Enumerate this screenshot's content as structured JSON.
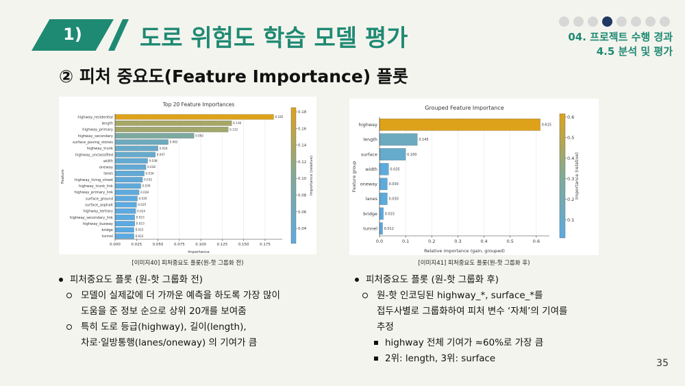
{
  "header": {
    "number": "1)",
    "title": "도로 위험도 학습 모델 평가",
    "section_line1": "04. 프로젝트 수행 경과",
    "section_line2": "4.5 분석 및 평가",
    "progress_dots": 8,
    "active_dot": 3
  },
  "subtitle": "② 피처 중요도(Feature Importance) 플롯",
  "colors": {
    "accent": "#1f8a73",
    "dot_active": "#213863",
    "dot_inactive": "#d7d7d7"
  },
  "chart_data": [
    {
      "type": "bar",
      "orientation": "horizontal",
      "title": "Top 20 Feature Importances",
      "xlabel": "Importance",
      "ylabel": "Feature",
      "colorbar_label": "Importance (relative)",
      "colorbar_ticks": [
        "0.04",
        "0.06",
        "0.08",
        "0.10",
        "0.12",
        "0.14",
        "0.16",
        "0.18"
      ],
      "x_ticks": [
        "0.000",
        "0.025",
        "0.050",
        "0.075",
        "0.100",
        "0.125",
        "0.150",
        "0.175"
      ],
      "xlim": [
        0,
        0.195
      ],
      "categories": [
        "highway_residential",
        "length",
        "highway_primary",
        "highway_secondary",
        "surface_paving_stones",
        "highway_trunk",
        "highway_unclassified",
        "width",
        "oneway",
        "lanes",
        "highway_living_street",
        "highway_trunk_link",
        "highway_primary_link",
        "surface_ground",
        "surface_asphalt",
        "highway_tertiary",
        "highway_secondary_link",
        "highway_busway",
        "bridge",
        "tunnel"
      ],
      "values": [
        0.185,
        0.136,
        0.132,
        0.092,
        0.062,
        0.05,
        0.047,
        0.038,
        0.036,
        0.034,
        0.032,
        0.03,
        0.028,
        0.026,
        0.025,
        0.024,
        0.023,
        0.023,
        0.022,
        0.022
      ],
      "value_labels": [
        "0.185",
        "0.136",
        "0.132",
        "0.092",
        "0.062",
        "0.050",
        "0.047",
        "0.038",
        "0.036",
        "0.034",
        "0.032",
        "0.030",
        "0.028",
        "0.026",
        "0.025",
        "0.024",
        "0.023",
        "0.023",
        "0.022",
        "0.022"
      ]
    },
    {
      "type": "bar",
      "orientation": "horizontal",
      "title": "Grouped Feature Importance",
      "xlabel": "Relative importance (gain, grouped)",
      "ylabel": "Feature group",
      "colorbar_label": "Importance (relative)",
      "colorbar_ticks": [
        "0.1",
        "0.2",
        "0.3",
        "0.4",
        "0.5",
        "0.6"
      ],
      "x_ticks": [
        "0.0",
        "0.1",
        "0.2",
        "0.3",
        "0.4",
        "0.5",
        "0.6"
      ],
      "xlim": [
        0,
        0.65
      ],
      "categories": [
        "highway",
        "length",
        "surface",
        "width",
        "oneway",
        "lanes",
        "bridge",
        "tunnel"
      ],
      "values": [
        0.615,
        0.145,
        0.1,
        0.035,
        0.03,
        0.03,
        0.015,
        0.012
      ],
      "value_labels": [
        "0.615",
        "0.145",
        "0.100",
        "0.035",
        "0.030",
        "0.030",
        "0.015",
        "0.012"
      ]
    }
  ],
  "captions": {
    "left": "[이미지40] 피처중요도 플롯(원-핫 그룹화 전)",
    "right": "[이미지41] 피처중요도 플롯(원-핫 그룹화 후)"
  },
  "notes_left": {
    "bullet": "피처중요도 플롯 (원-핫 그룹화 전)",
    "sub1_line1": "모델이 실제값에 더 가까운 예측을 하도록 가장 많이",
    "sub1_line2": "도움을 준 정보 순으로 상위 20개를 보여줌",
    "sub2_line1": "특히 도로 등급(highway), 길이(length),",
    "sub2_line2": "차로·일방통행(lanes/oneway) 의 기여가 큼"
  },
  "notes_right": {
    "bullet": "피처중요도 플롯 (원-핫 그룹화 후)",
    "sub1_line1": "원-핫 인코딩된 highway_*, surface_*를",
    "sub1_line2": "접두사별로 그룹화하여 피처 변수 ‘자체’의 기여를",
    "sub1_line3": "추정",
    "sub_sub1": "highway 전체 기여가 ≈60%로 가장 큼",
    "sub_sub2": "2위: length, 3위: surface"
  },
  "page_number": "35"
}
